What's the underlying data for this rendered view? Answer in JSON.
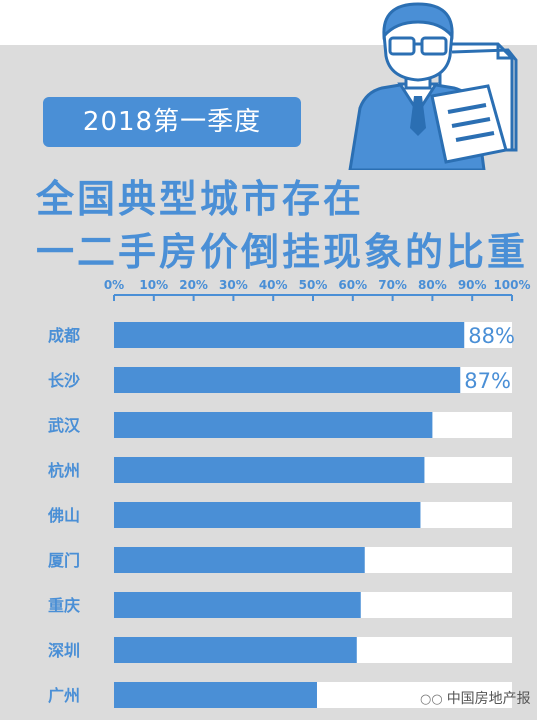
{
  "header": {
    "period": "2018第一季度",
    "title_line1": "全国典型城市存在",
    "title_line2": "一二手房价倒挂现象的比重"
  },
  "watermark": {
    "text": "中国房地产报",
    "icon": "wechat-icon"
  },
  "colors": {
    "accent": "#4a8fd6",
    "track": "#ffffff",
    "background": "#dcdcdc"
  },
  "chart_data": {
    "type": "bar",
    "orientation": "horizontal",
    "categories": [
      "成都",
      "长沙",
      "武汉",
      "杭州",
      "佛山",
      "厦门",
      "重庆",
      "深圳",
      "广州"
    ],
    "values": [
      88,
      87,
      80,
      78,
      77,
      63,
      62,
      61,
      51
    ],
    "data_labels": [
      "88%",
      "87%",
      "",
      "",
      "",
      "",
      "",
      "",
      ""
    ],
    "xlim": [
      0,
      100
    ],
    "ticks": [
      "0%",
      "10%",
      "20%",
      "30%",
      "40%",
      "50%",
      "60%",
      "70%",
      "80%",
      "90%",
      "100%"
    ],
    "grid": false
  }
}
